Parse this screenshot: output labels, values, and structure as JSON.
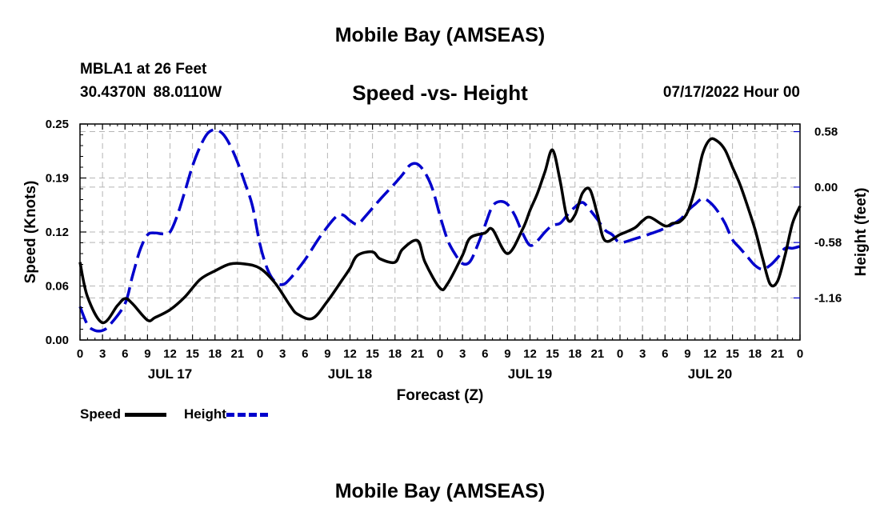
{
  "page": {
    "title": "Mobile Bay (AMSEAS)",
    "station": "MBLA1 at 26 Feet",
    "coordinates": "30.4370N  88.0110W",
    "run_time": "07/17/2022 Hour 00",
    "footer_title": "Mobile Bay (AMSEAS)"
  },
  "legend": {
    "speed_label": "Speed",
    "height_label": "Height"
  },
  "chart_data": {
    "type": "line",
    "title": "Speed -vs- Height",
    "xlabel": "Forecast (Z)",
    "ylabel_left": "Speed (Knots)",
    "ylabel_right": "Height (feet)",
    "x_range_hours": [
      0,
      96
    ],
    "ylim_left": [
      0,
      0.25
    ],
    "ylim_right": [
      -1.6,
      0.66
    ],
    "y_ticks_left": [
      "0.00",
      "0.06",
      "0.12",
      "0.19",
      "0.25"
    ],
    "y_tick_values_left": [
      0,
      0.0625,
      0.125,
      0.1875,
      0.25
    ],
    "y_ticks_right": [
      "0.58",
      "0.00",
      "-0.58",
      "-1.16"
    ],
    "y_tick_values_right": [
      0.58,
      0,
      -0.58,
      -1.16
    ],
    "x_tick_hours": [
      0,
      3,
      6,
      9,
      12,
      15,
      18,
      21,
      24,
      27,
      30,
      33,
      36,
      39,
      42,
      45,
      48,
      51,
      54,
      57,
      60,
      63,
      66,
      69,
      72,
      75,
      78,
      81,
      84,
      87,
      90,
      93,
      96
    ],
    "x_tick_labels": [
      "0",
      "3",
      "6",
      "9",
      "12",
      "15",
      "18",
      "21",
      "0",
      "3",
      "6",
      "9",
      "12",
      "15",
      "18",
      "21",
      "0",
      "3",
      "6",
      "9",
      "12",
      "15",
      "18",
      "21",
      "0",
      "3",
      "6",
      "9",
      "12",
      "15",
      "18",
      "21",
      "0"
    ],
    "day_labels": [
      {
        "label": "JUL 17",
        "hour": 12
      },
      {
        "label": "JUL 18",
        "hour": 36
      },
      {
        "label": "JUL 19",
        "hour": 60
      },
      {
        "label": "JUL 20",
        "hour": 84
      }
    ],
    "series": [
      {
        "name": "Speed",
        "axis": "left",
        "color": "#000000",
        "dash": "solid",
        "x": [
          0,
          1,
          3,
          5,
          6,
          7,
          9,
          10,
          12,
          14,
          16,
          18,
          20,
          22,
          24,
          26,
          28,
          29,
          31,
          33,
          35,
          36,
          37,
          39,
          40,
          42,
          43,
          45,
          46,
          48,
          49,
          51,
          52,
          54,
          55,
          57,
          59,
          60,
          61,
          62,
          63,
          64,
          65,
          66,
          67,
          68,
          69,
          70,
          72,
          74,
          75,
          76,
          78,
          79,
          80,
          81,
          82,
          83,
          84,
          85,
          86,
          87,
          88,
          89,
          90,
          91,
          92,
          93,
          94,
          95,
          96
        ],
        "y": [
          0.09,
          0.05,
          0.02,
          0.04,
          0.048,
          0.042,
          0.023,
          0.026,
          0.035,
          0.05,
          0.07,
          0.08,
          0.088,
          0.088,
          0.083,
          0.066,
          0.04,
          0.03,
          0.025,
          0.045,
          0.07,
          0.083,
          0.098,
          0.102,
          0.094,
          0.09,
          0.105,
          0.115,
          0.09,
          0.06,
          0.065,
          0.098,
          0.118,
          0.124,
          0.128,
          0.1,
          0.128,
          0.15,
          0.17,
          0.195,
          0.22,
          0.185,
          0.14,
          0.145,
          0.17,
          0.174,
          0.145,
          0.115,
          0.122,
          0.13,
          0.138,
          0.142,
          0.132,
          0.135,
          0.137,
          0.148,
          0.175,
          0.215,
          0.232,
          0.23,
          0.22,
          0.2,
          0.18,
          0.155,
          0.128,
          0.095,
          0.065,
          0.068,
          0.098,
          0.135,
          0.155
        ]
      },
      {
        "name": "Height",
        "axis": "right",
        "color": "#0000cc",
        "dash": "dashed",
        "x": [
          0,
          1,
          2,
          3,
          4,
          6,
          7,
          8,
          9,
          10,
          11,
          12,
          13,
          14,
          15,
          16,
          17,
          18,
          19,
          20,
          21,
          22,
          23,
          24,
          25,
          26,
          27,
          28,
          30,
          32,
          34,
          35,
          36,
          37,
          38,
          40,
          42,
          43,
          44,
          45,
          46,
          47,
          48,
          49,
          50,
          51,
          52,
          53,
          54,
          55,
          56,
          57,
          58,
          59,
          60,
          61,
          62,
          63,
          64,
          65,
          66,
          67,
          68,
          69,
          70,
          71,
          72,
          74,
          76,
          78,
          80,
          81,
          82,
          83,
          84,
          85,
          86,
          87,
          88,
          89,
          90,
          91,
          92,
          93,
          94,
          95,
          96
        ],
        "y": [
          -1.25,
          -1.44,
          -1.5,
          -1.5,
          -1.44,
          -1.22,
          -0.93,
          -0.66,
          -0.5,
          -0.48,
          -0.49,
          -0.47,
          -0.29,
          -0.04,
          0.22,
          0.42,
          0.56,
          0.6,
          0.56,
          0.44,
          0.26,
          0.04,
          -0.2,
          -0.6,
          -0.86,
          -0.99,
          -1.02,
          -0.96,
          -0.76,
          -0.52,
          -0.32,
          -0.29,
          -0.35,
          -0.39,
          -0.31,
          -0.13,
          0.04,
          0.13,
          0.23,
          0.24,
          0.15,
          -0.02,
          -0.3,
          -0.55,
          -0.7,
          -0.8,
          -0.78,
          -0.61,
          -0.4,
          -0.2,
          -0.15,
          -0.18,
          -0.3,
          -0.48,
          -0.61,
          -0.56,
          -0.47,
          -0.4,
          -0.38,
          -0.29,
          -0.21,
          -0.16,
          -0.24,
          -0.34,
          -0.45,
          -0.5,
          -0.58,
          -0.54,
          -0.49,
          -0.43,
          -0.34,
          -0.25,
          -0.18,
          -0.12,
          -0.16,
          -0.25,
          -0.38,
          -0.55,
          -0.64,
          -0.73,
          -0.82,
          -0.86,
          -0.82,
          -0.74,
          -0.64,
          -0.64,
          -0.62
        ]
      }
    ]
  }
}
